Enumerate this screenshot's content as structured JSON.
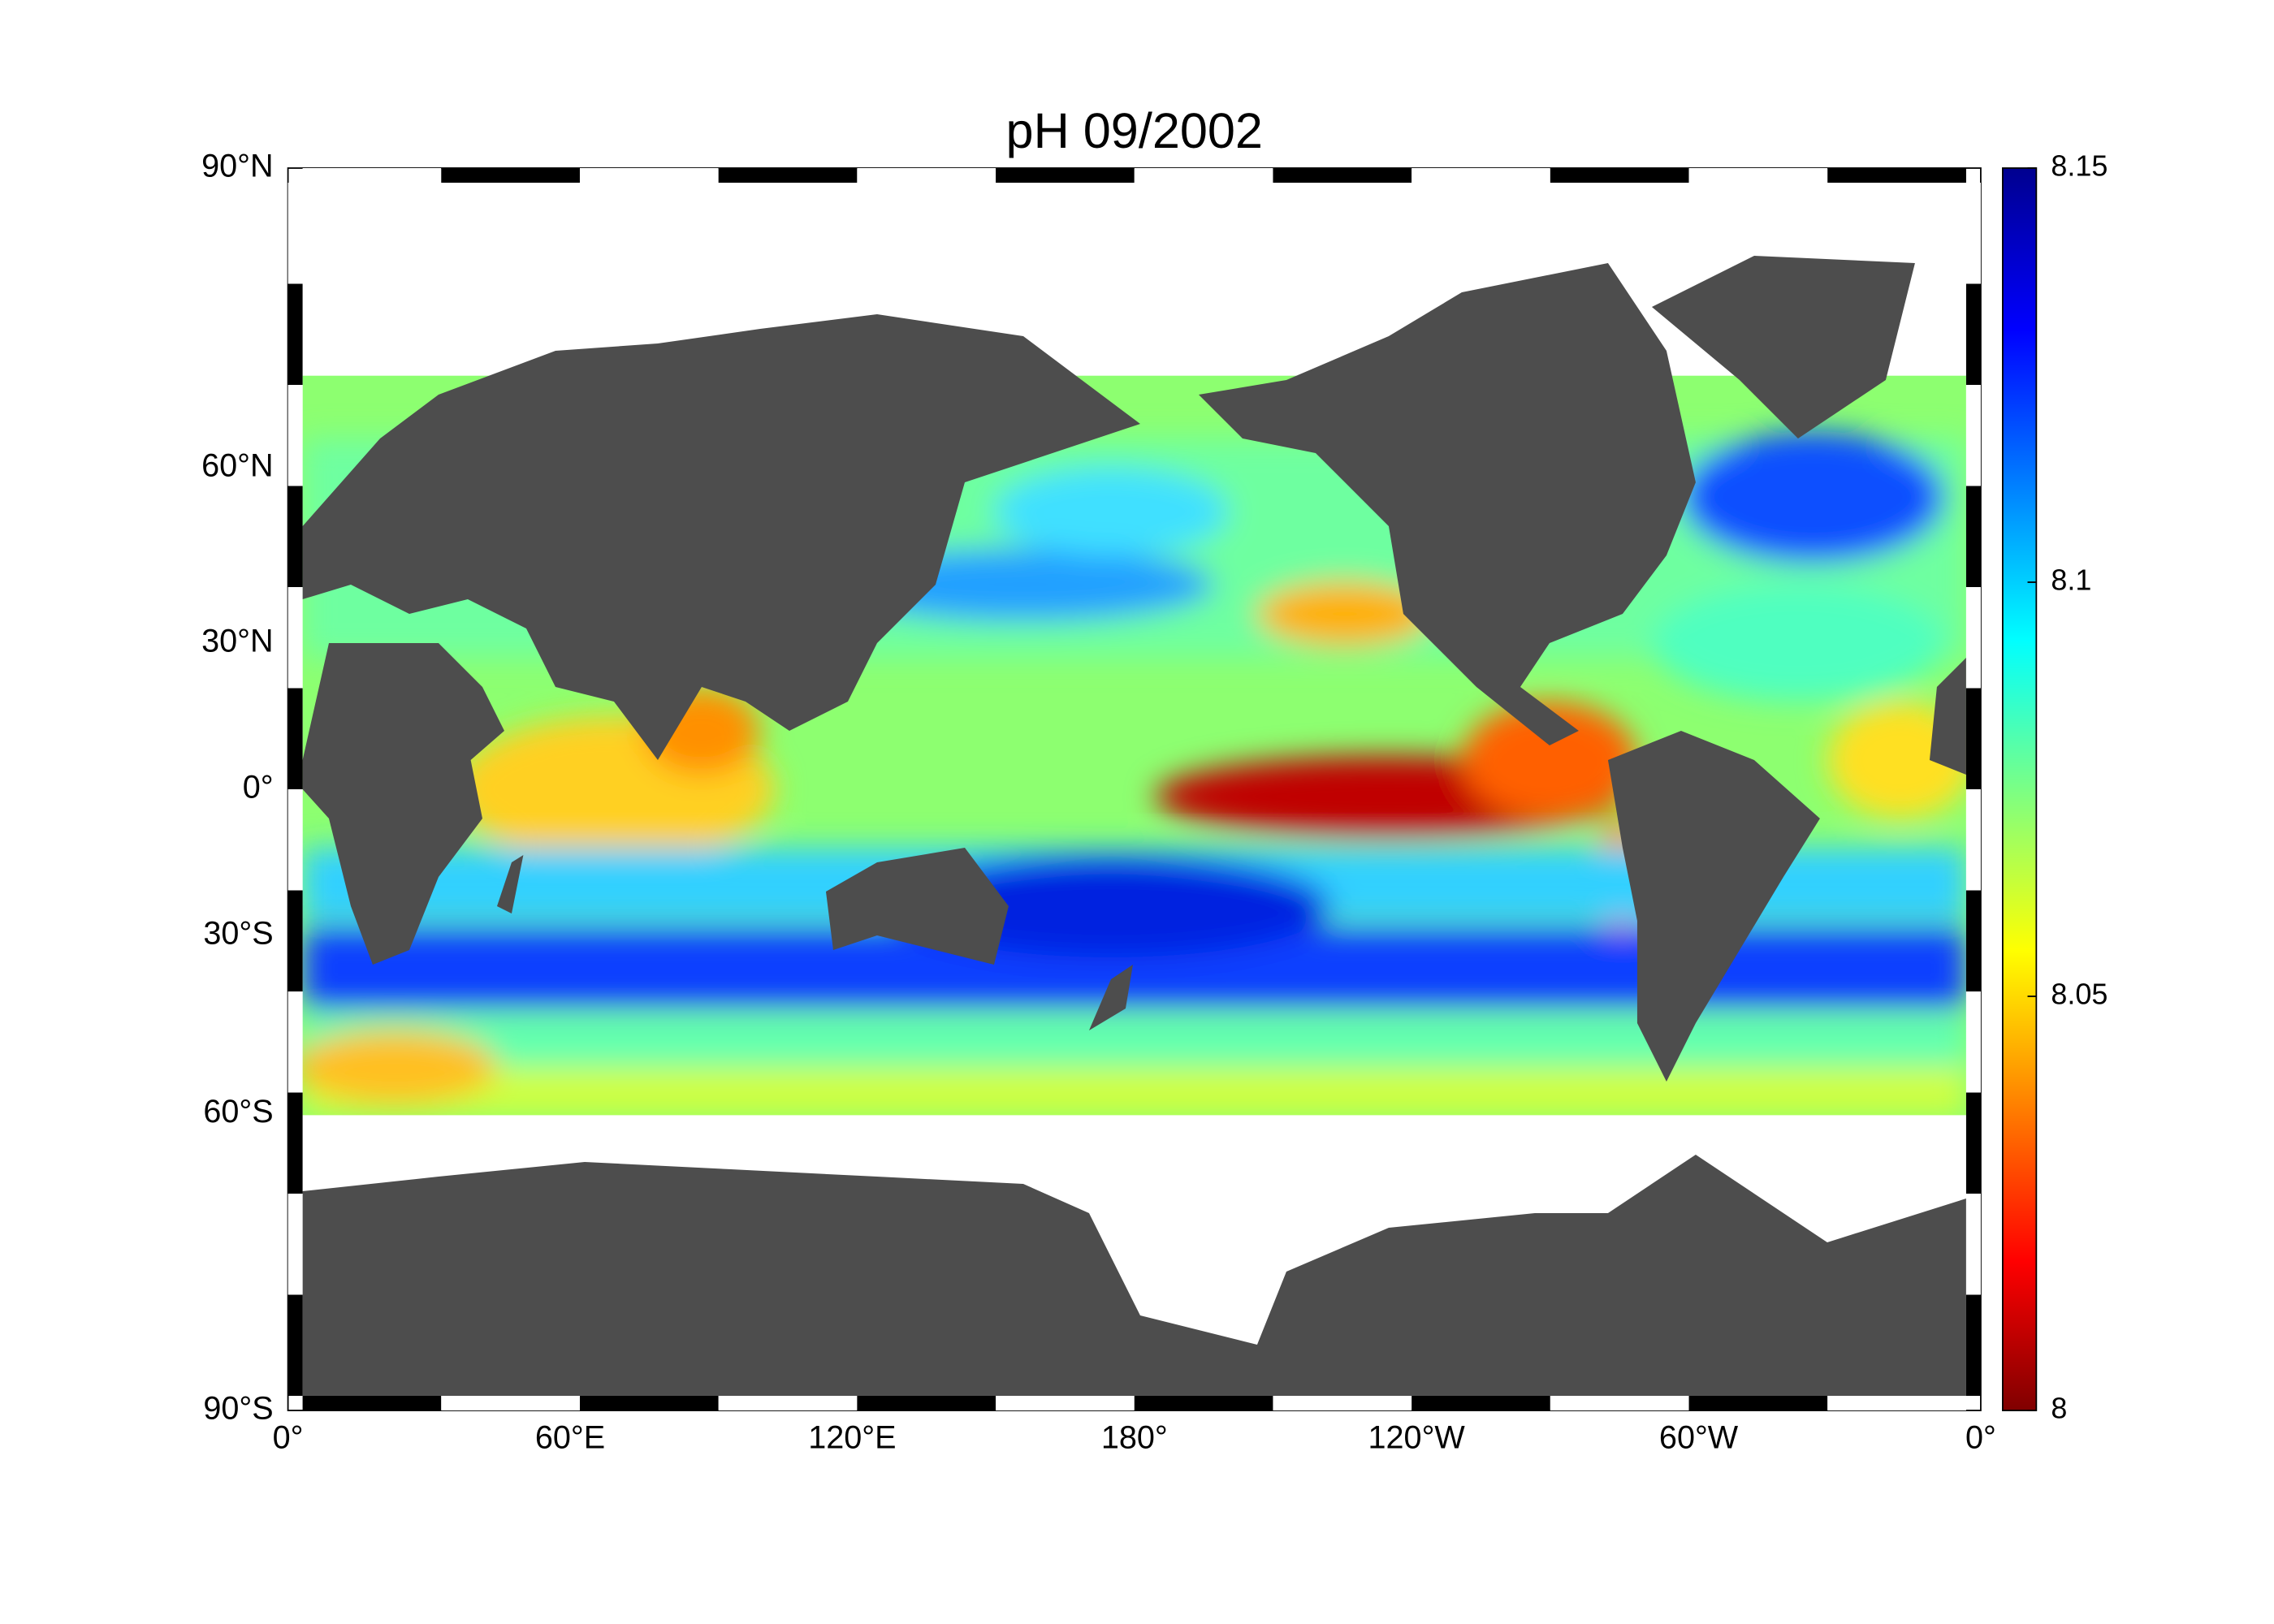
{
  "map": {
    "title": "pH  09/2002",
    "lat_labels": [
      "90°N",
      "60°N",
      "30°N",
      "0°",
      "30°S",
      "60°S",
      "90°S"
    ],
    "lon_labels": [
      "0°",
      "60°E",
      "120°E",
      "180°",
      "120°W",
      "60°W",
      "0°"
    ],
    "colorbar": {
      "lim": [
        8,
        8.15
      ],
      "ticks": [
        8,
        8.05,
        8.1,
        8.15
      ]
    }
  }
}
